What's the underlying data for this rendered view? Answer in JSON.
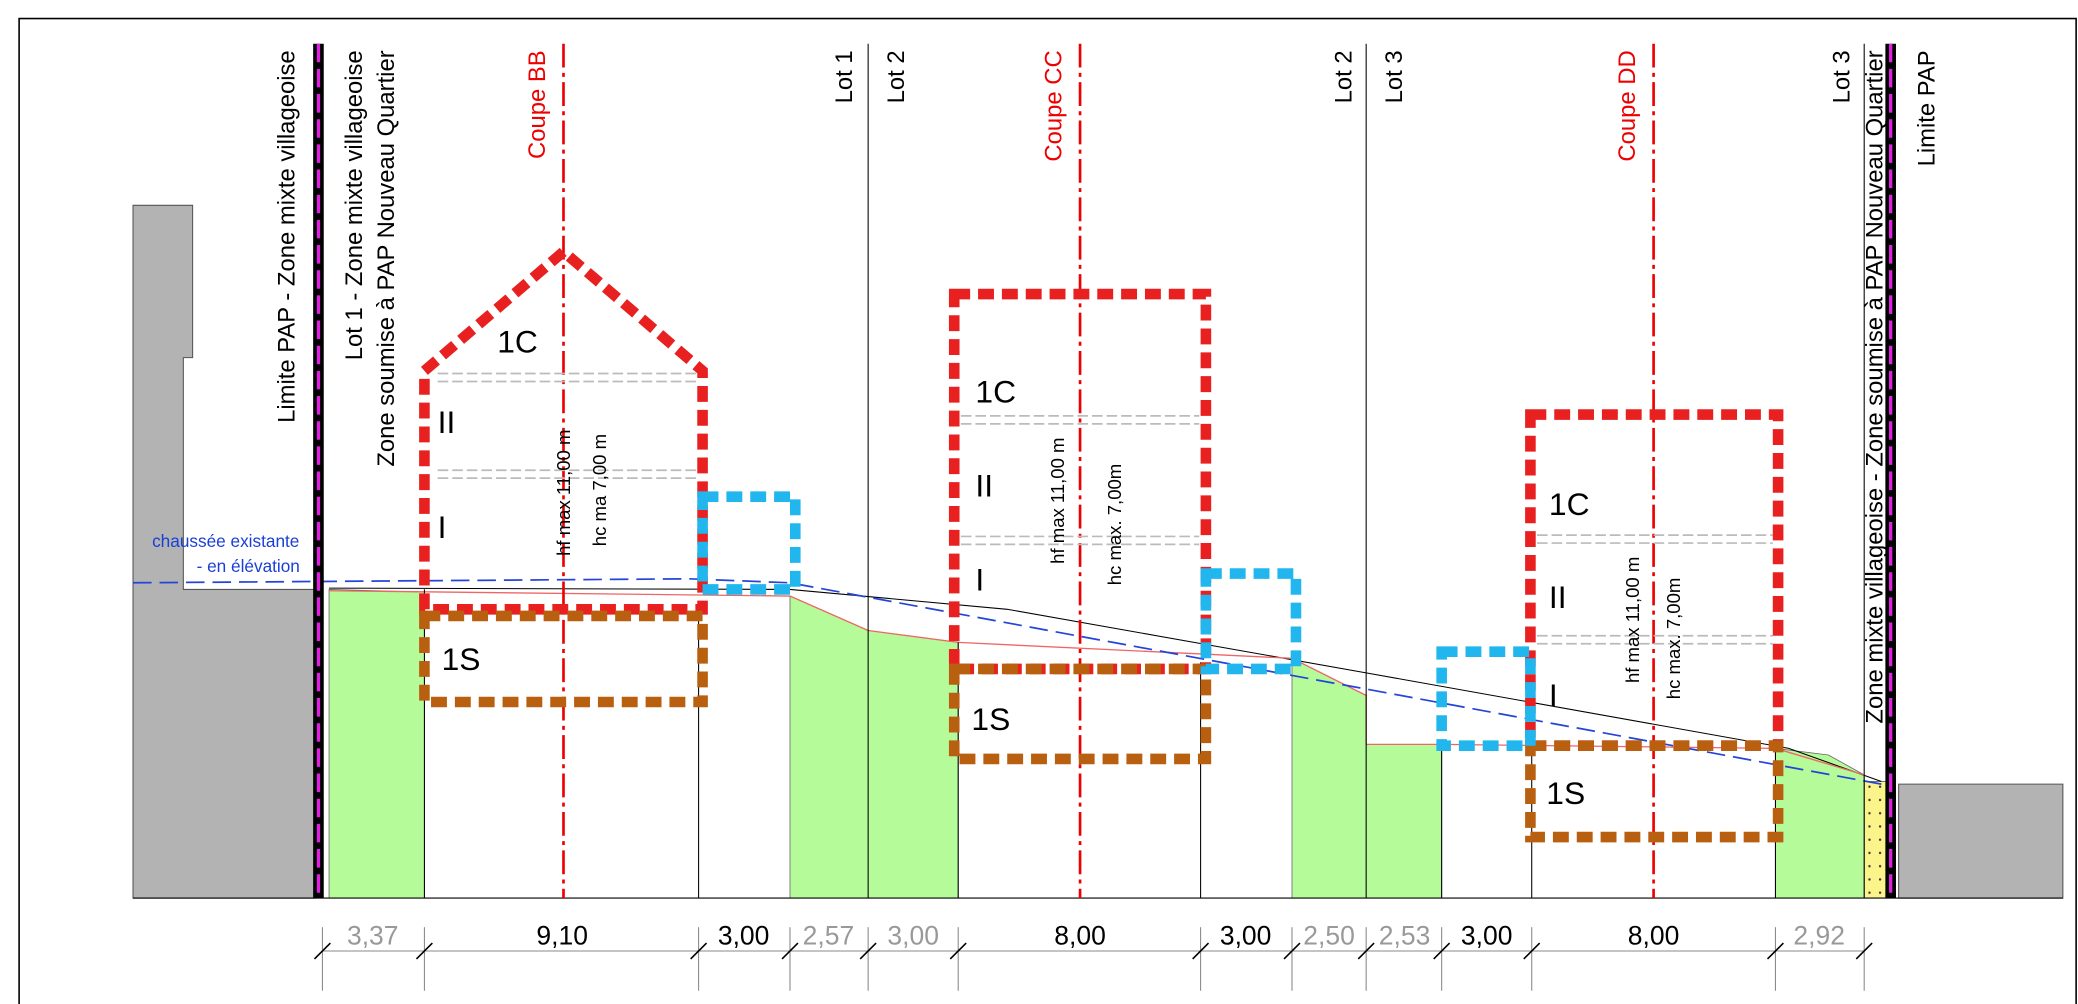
{
  "boundary_labels": [
    "Limite PAP - Zone mixte villageoise",
    "Lot 1 - Zone mixte villageoise",
    "Zone soumise à PAP Nouveau Quartier",
    "Lot 1",
    "Lot 2",
    "Lot 2",
    "Lot 3",
    "Lot 3",
    "Zone mixte villageoise - Zone soumise à PAP Nouveau Quartier",
    "Limite PAP"
  ],
  "sections": [
    "Coupe BB",
    "Coupe CC",
    "Coupe DD"
  ],
  "buildings": [
    {
      "floors": [
        "1C",
        "II",
        "I",
        "1S"
      ],
      "heights": [
        "hf  max 11,00 m",
        "hc ma 7,00 m"
      ]
    },
    {
      "floors": [
        "1C",
        "II",
        "I",
        "1S"
      ],
      "heights": [
        "hf max 11,00 m",
        "hc max. 7,00m"
      ]
    },
    {
      "floors": [
        "1C",
        "II",
        "I",
        "1S"
      ],
      "heights": [
        "hf max 11,00 m",
        "hc max. 7,00m"
      ]
    }
  ],
  "annotation": [
    "chaussée existante",
    "- en élévation"
  ],
  "dimensions": [
    "3,37",
    "9,10",
    "3,00",
    "2,57",
    "3,00",
    "8,00",
    "3,00",
    "2,50",
    "2,53",
    "3,00",
    "8,00",
    "2,92"
  ]
}
